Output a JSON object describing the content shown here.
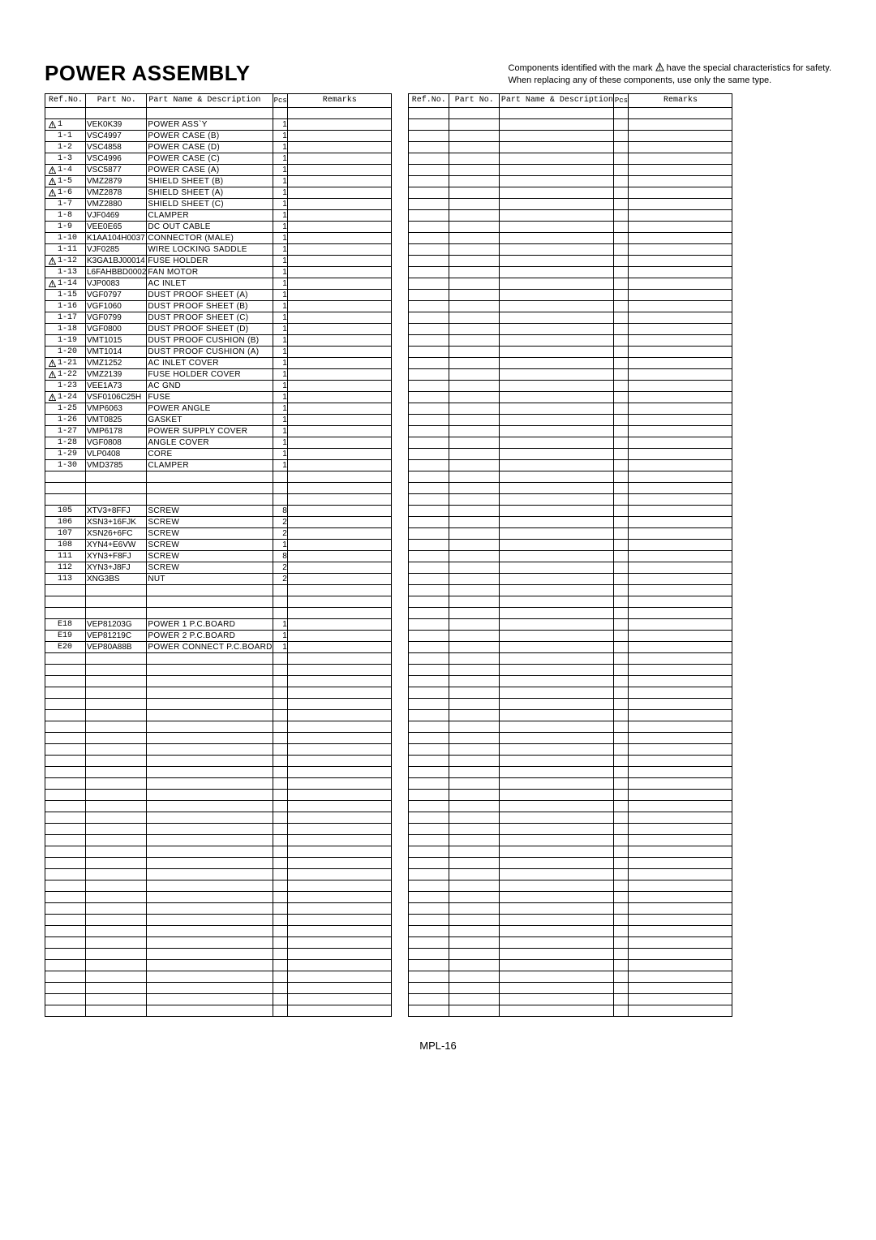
{
  "title": "POWER ASSEMBLY",
  "note_line1_a": "Components identified with the mark",
  "note_line1_b": "have the special characteristics for safety.",
  "note_line2": "When replacing any of these components, use only the same type.",
  "footer": "MPL-16",
  "headers": {
    "ref": "Ref.No.",
    "part": "Part No.",
    "desc": "Part Name & Description",
    "pcs": "Pcs",
    "remarks": "Remarks"
  },
  "left_total_rows": 80,
  "right_total_rows": 80,
  "left_rows": [
    {
      "mark": true,
      "ref": "1",
      "part": "VEK0K39",
      "desc": "POWER ASS`Y",
      "pcs": "1"
    },
    {
      "mark": false,
      "ref": "1-1",
      "part": "VSC4997",
      "desc": "POWER CASE (B)",
      "pcs": "1"
    },
    {
      "mark": false,
      "ref": "1-2",
      "part": "VSC4858",
      "desc": "POWER CASE (D)",
      "pcs": "1"
    },
    {
      "mark": false,
      "ref": "1-3",
      "part": "VSC4996",
      "desc": "POWER CASE (C)",
      "pcs": "1"
    },
    {
      "mark": true,
      "ref": "1-4",
      "part": "VSC5877",
      "desc": "POWER CASE (A)",
      "pcs": "1"
    },
    {
      "mark": true,
      "ref": "1-5",
      "part": "VMZ2879",
      "desc": "SHIELD SHEET (B)",
      "pcs": "1"
    },
    {
      "mark": true,
      "ref": "1-6",
      "part": "VMZ2878",
      "desc": "SHIELD SHEET (A)",
      "pcs": "1"
    },
    {
      "mark": false,
      "ref": "1-7",
      "part": "VMZ2880",
      "desc": "SHIELD SHEET (C)",
      "pcs": "1"
    },
    {
      "mark": false,
      "ref": "1-8",
      "part": "VJF0469",
      "desc": "CLAMPER",
      "pcs": "1"
    },
    {
      "mark": false,
      "ref": "1-9",
      "part": "VEE0E65",
      "desc": "DC OUT CABLE",
      "pcs": "1"
    },
    {
      "mark": false,
      "ref": "1-10",
      "part": "K1AA104H0037",
      "desc": "CONNECTOR (MALE)",
      "pcs": "1"
    },
    {
      "mark": false,
      "ref": "1-11",
      "part": "VJF0285",
      "desc": "WIRE LOCKING SADDLE",
      "pcs": "1"
    },
    {
      "mark": true,
      "ref": "1-12",
      "part": "K3GA1BJ00014",
      "desc": "FUSE HOLDER",
      "pcs": "1"
    },
    {
      "mark": false,
      "ref": "1-13",
      "part": "L6FAHBBD0002",
      "desc": "FAN MOTOR",
      "pcs": "1"
    },
    {
      "mark": true,
      "ref": "1-14",
      "part": "VJP0083",
      "desc": "AC INLET",
      "pcs": "1"
    },
    {
      "mark": false,
      "ref": "1-15",
      "part": "VGF0797",
      "desc": "DUST PROOF SHEET (A)",
      "pcs": "1"
    },
    {
      "mark": false,
      "ref": "1-16",
      "part": "VGF1060",
      "desc": "DUST PROOF SHEET (B)",
      "pcs": "1"
    },
    {
      "mark": false,
      "ref": "1-17",
      "part": "VGF0799",
      "desc": "DUST PROOF SHEET (C)",
      "pcs": "1"
    },
    {
      "mark": false,
      "ref": "1-18",
      "part": "VGF0800",
      "desc": "DUST PROOF SHEET (D)",
      "pcs": "1"
    },
    {
      "mark": false,
      "ref": "1-19",
      "part": "VMT1015",
      "desc": "DUST PROOF CUSHION (B)",
      "pcs": "1"
    },
    {
      "mark": false,
      "ref": "1-20",
      "part": "VMT1014",
      "desc": "DUST PROOF CUSHION (A)",
      "pcs": "1"
    },
    {
      "mark": true,
      "ref": "1-21",
      "part": "VMZ1252",
      "desc": "AC INLET COVER",
      "pcs": "1"
    },
    {
      "mark": true,
      "ref": "1-22",
      "part": "VMZ2139",
      "desc": "FUSE HOLDER COVER",
      "pcs": "1"
    },
    {
      "mark": false,
      "ref": "1-23",
      "part": "VEE1A73",
      "desc": "AC GND",
      "pcs": "1"
    },
    {
      "mark": true,
      "ref": "1-24",
      "part": "VSF0106C25H",
      "desc": "FUSE",
      "pcs": "1"
    },
    {
      "mark": false,
      "ref": "1-25",
      "part": "VMP6063",
      "desc": "POWER ANGLE",
      "pcs": "1"
    },
    {
      "mark": false,
      "ref": "1-26",
      "part": "VMT0825",
      "desc": "GASKET",
      "pcs": "1"
    },
    {
      "mark": false,
      "ref": "1-27",
      "part": "VMP6178",
      "desc": "POWER SUPPLY COVER",
      "pcs": "1"
    },
    {
      "mark": false,
      "ref": "1-28",
      "part": "VGF0808",
      "desc": "ANGLE COVER",
      "pcs": "1"
    },
    {
      "mark": false,
      "ref": "1-29",
      "part": "VLP0408",
      "desc": "CORE",
      "pcs": "1"
    },
    {
      "mark": false,
      "ref": "1-30",
      "part": "VMD3785",
      "desc": "CLAMPER",
      "pcs": "1"
    },
    {
      "blank": true
    },
    {
      "blank": true
    },
    {
      "blank": true
    },
    {
      "mark": false,
      "ref": "105",
      "part": "XTV3+8FFJ",
      "desc": "SCREW",
      "pcs": "8"
    },
    {
      "mark": false,
      "ref": "106",
      "part": "XSN3+16FJK",
      "desc": "SCREW",
      "pcs": "2"
    },
    {
      "mark": false,
      "ref": "107",
      "part": "XSN26+6FC",
      "desc": "SCREW",
      "pcs": "2"
    },
    {
      "mark": false,
      "ref": "108",
      "part": "XYN4+E6VW",
      "desc": "SCREW",
      "pcs": "1"
    },
    {
      "mark": false,
      "ref": "111",
      "part": "XYN3+F8FJ",
      "desc": "SCREW",
      "pcs": "8"
    },
    {
      "mark": false,
      "ref": "112",
      "part": "XYN3+J8FJ",
      "desc": "SCREW",
      "pcs": "2"
    },
    {
      "mark": false,
      "ref": "113",
      "part": "XNG3BS",
      "desc": "NUT",
      "pcs": "2"
    },
    {
      "blank": true
    },
    {
      "blank": true
    },
    {
      "blank": true
    },
    {
      "mark": false,
      "ref": "E18",
      "part": "VEP81203G",
      "desc": "POWER 1 P.C.BOARD",
      "pcs": "1"
    },
    {
      "mark": false,
      "ref": "E19",
      "part": "VEP81219C",
      "desc": "POWER 2 P.C.BOARD",
      "pcs": "1"
    },
    {
      "mark": false,
      "ref": "E20",
      "part": "VEP80A88B",
      "desc": "POWER CONNECT P.C.BOARD",
      "pcs": "1"
    }
  ],
  "right_rows": []
}
